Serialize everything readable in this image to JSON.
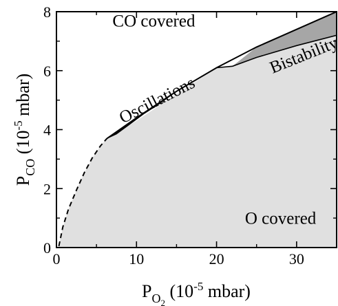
{
  "chart_data": {
    "type": "area",
    "xlabel": {
      "main": "P",
      "sub": "O",
      "subsub": "2",
      "rest": " (10",
      "exp": "-5",
      "unit": " mbar)"
    },
    "ylabel": {
      "main": "P",
      "sub": "CO",
      "rest": " (10",
      "exp": "-5",
      "unit": " mbar)"
    },
    "xlim": [
      0,
      35
    ],
    "ylim": [
      0,
      8
    ],
    "xticks": [
      0,
      10,
      20,
      30
    ],
    "yticks": [
      0,
      2,
      4,
      6,
      8
    ],
    "regions": [
      {
        "name": "CO covered",
        "label": "CO covered",
        "label_at": [
          7,
          7.5
        ],
        "color": "#ffffff"
      },
      {
        "name": "O covered",
        "label": "O covered",
        "label_at": [
          28,
          0.8
        ],
        "color": "#e0e0e0"
      },
      {
        "name": "Oscillations",
        "label": "Oscillations",
        "label_at": [
          8.3,
          4.2
        ],
        "color": "#000000"
      },
      {
        "name": "Bistability",
        "label": "Bistability",
        "label_at": [
          27,
          5.9
        ],
        "color": "#a6a6a6"
      }
    ],
    "boundary_dashed": [
      [
        0.3,
        0.05
      ],
      [
        0.8,
        0.7
      ],
      [
        1.5,
        1.3
      ],
      [
        2.5,
        1.95
      ],
      [
        3.5,
        2.55
      ],
      [
        4.5,
        3.05
      ],
      [
        5.5,
        3.45
      ],
      [
        6.3,
        3.7
      ]
    ],
    "boundary_upper": [
      [
        6.3,
        3.7
      ],
      [
        10,
        4.4
      ],
      [
        15,
        5.3
      ],
      [
        20,
        6.1
      ],
      [
        25,
        6.8
      ],
      [
        30,
        7.4
      ],
      [
        35,
        8.0
      ]
    ],
    "boundary_lower": [
      [
        6.3,
        3.7
      ],
      [
        10,
        4.3
      ],
      [
        15,
        5.2
      ],
      [
        20,
        6.1
      ],
      [
        22,
        6.15
      ],
      [
        25,
        6.45
      ],
      [
        30,
        6.85
      ],
      [
        35,
        7.2
      ]
    ],
    "oscillation_region": [
      [
        6.3,
        3.7
      ],
      [
        8,
        4.0
      ],
      [
        10,
        4.4
      ],
      [
        12,
        4.75
      ],
      [
        14,
        5.1
      ],
      [
        15,
        5.3
      ],
      [
        13,
        4.9
      ],
      [
        11,
        4.55
      ],
      [
        9,
        4.15
      ],
      [
        7.5,
        3.85
      ]
    ],
    "bistability_region": [
      [
        22,
        6.15
      ],
      [
        25,
        6.8
      ],
      [
        30,
        7.4
      ],
      [
        35,
        8.0
      ],
      [
        35,
        7.2
      ],
      [
        30,
        6.85
      ],
      [
        25,
        6.45
      ]
    ]
  }
}
